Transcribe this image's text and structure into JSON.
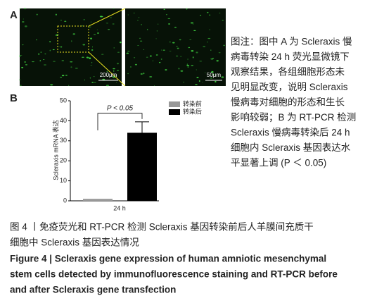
{
  "panel_a": {
    "label": "A",
    "scale_left": "200μm",
    "scale_right": "50μm"
  },
  "chart_data": {
    "type": "bar",
    "panel_label": "B",
    "y_label": "Scleraxis mRNA 表达",
    "categories": [
      "24 h"
    ],
    "series": [
      {
        "name": "转染前",
        "color": "#999999",
        "values": [
          1
        ]
      },
      {
        "name": "转染后",
        "color": "#000000",
        "values": [
          34
        ],
        "errors": [
          5.5
        ]
      }
    ],
    "ylim": [
      0,
      50
    ],
    "yticks": [
      0,
      10,
      20,
      30,
      40,
      50
    ],
    "annotation": "P < 0.05",
    "legend": "upper right"
  },
  "note": [
    "图注：图中 A 为 Scleraxis 慢",
    "病毒转染 24 h 荧光显微镜下",
    "观察结果，各组细胞形态未",
    "见明显改变，说明 Scleraxis",
    "慢病毒对细胞的形态和生长",
    "影响较弱；B 为 RT-PCR 检测",
    "Scleraxis 慢病毒转染后 24 h",
    "细胞内 Scleraxis 基因表达水",
    "平显著上调 (P ＜ 0.05)"
  ],
  "caption_cn": [
    "图 4 丨免疫荧光和 RT-PCR 检测 Scleraxis 基因转染前后人羊膜间充质干",
    "细胞中 Scleraxis 基因表达情况"
  ],
  "caption_en": [
    "Figure 4 | Scleraxis gene expression of human amniotic mesenchymal",
    "stem cells detected by immunofluorescence staining and RT-PCR before",
    "and after Scleraxis gene transfection"
  ]
}
